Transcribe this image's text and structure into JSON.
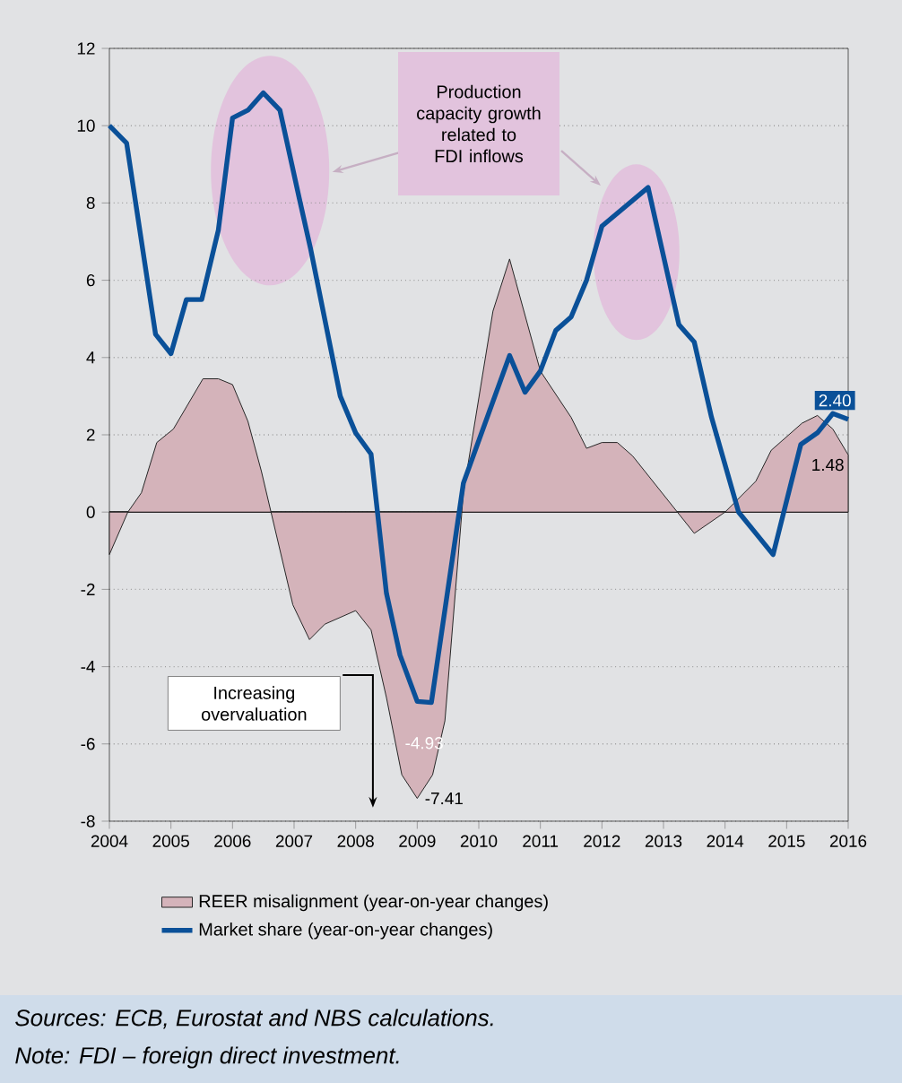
{
  "chart_data": {
    "type": "line",
    "xlim": [
      2004,
      2016
    ],
    "xticks": [
      2004,
      2005,
      2006,
      2007,
      2008,
      2009,
      2010,
      2011,
      2012,
      2013,
      2014,
      2015,
      2016
    ],
    "ylim": [
      -8,
      12
    ],
    "yticks": [
      -8,
      -6,
      -4,
      -2,
      0,
      2,
      4,
      6,
      8,
      10,
      12
    ],
    "grid": "y",
    "legend": "bottom",
    "marker": "none",
    "ref_lines": [
      {
        "axis": "y",
        "value": 0
      }
    ],
    "series": [
      {
        "name": "REER misalignment (year-on-year changes)",
        "type": "area",
        "color": "#d4b3ba",
        "x": [
          2004.0,
          2004.3,
          2004.52,
          2004.77,
          2005.04,
          2005.52,
          2005.77,
          2006.0,
          2006.25,
          2006.47,
          2006.98,
          2007.25,
          2007.5,
          2008.0,
          2008.25,
          2008.5,
          2008.75,
          2009.0,
          2009.25,
          2009.45,
          2009.75,
          2010.23,
          2010.5,
          2011.0,
          2011.5,
          2011.75,
          2012.0,
          2012.25,
          2012.5,
          2013.0,
          2013.5,
          2014.0,
          2014.5,
          2014.75,
          2015.25,
          2015.5,
          2015.75,
          2016.0
        ],
        "values": [
          -1.1,
          0.0,
          0.5,
          1.8,
          2.15,
          3.45,
          3.45,
          3.3,
          2.35,
          1.05,
          -2.4,
          -3.3,
          -2.9,
          -2.55,
          -3.05,
          -4.8,
          -6.8,
          -7.41,
          -6.8,
          -5.4,
          0.5,
          5.2,
          6.55,
          3.65,
          2.45,
          1.65,
          1.8,
          1.8,
          1.45,
          0.45,
          -0.55,
          0.0,
          0.8,
          1.6,
          2.3,
          2.5,
          2.15,
          1.48
        ],
        "value_labels": [
          null,
          null,
          null,
          null,
          null,
          null,
          null,
          null,
          null,
          null,
          null,
          null,
          null,
          null,
          null,
          null,
          null,
          "-7.41",
          null,
          null,
          null,
          null,
          null,
          null,
          null,
          null,
          null,
          null,
          null,
          null,
          null,
          null,
          null,
          null,
          null,
          null,
          null,
          "1.48"
        ]
      },
      {
        "name": "Market share (year-on-year changes)",
        "color": "#0a5098",
        "x": [
          2004.0,
          2004.28,
          2004.75,
          2005.0,
          2005.25,
          2005.5,
          2005.77,
          2006.0,
          2006.25,
          2006.5,
          2006.77,
          2007.08,
          2007.27,
          2007.75,
          2008.0,
          2008.25,
          2008.5,
          2008.72,
          2009.0,
          2009.23,
          2009.75,
          2010.5,
          2010.75,
          2011.0,
          2011.25,
          2011.5,
          2011.75,
          2012.0,
          2012.75,
          2013.25,
          2013.5,
          2013.78,
          2014.22,
          2014.5,
          2014.78,
          2015.23,
          2015.5,
          2015.75,
          2016.0
        ],
        "values": [
          10.0,
          9.55,
          4.6,
          4.1,
          5.5,
          5.5,
          7.3,
          10.2,
          10.4,
          10.85,
          10.4,
          8.15,
          6.8,
          3.0,
          2.05,
          1.5,
          -2.1,
          -3.7,
          -4.9,
          -4.93,
          0.75,
          4.05,
          3.1,
          3.65,
          4.7,
          5.05,
          6.0,
          7.4,
          8.4,
          4.85,
          4.4,
          2.45,
          0.0,
          -0.55,
          -1.1,
          1.75,
          2.05,
          2.55,
          2.4
        ],
        "value_labels": [
          null,
          null,
          null,
          null,
          null,
          null,
          null,
          null,
          null,
          null,
          null,
          null,
          null,
          null,
          null,
          null,
          null,
          null,
          null,
          "-4.93",
          null,
          null,
          null,
          null,
          null,
          null,
          null,
          null,
          null,
          null,
          null,
          null,
          null,
          null,
          null,
          null,
          null,
          null,
          "2.40"
        ]
      }
    ],
    "annotations": [
      "Production capacity growth related to FDI inflows",
      "Increasing overvaluation",
      "Sources: ECB, Eurostat and NBS calculations.",
      "Note: FDI – foreign direct investment."
    ]
  }
}
